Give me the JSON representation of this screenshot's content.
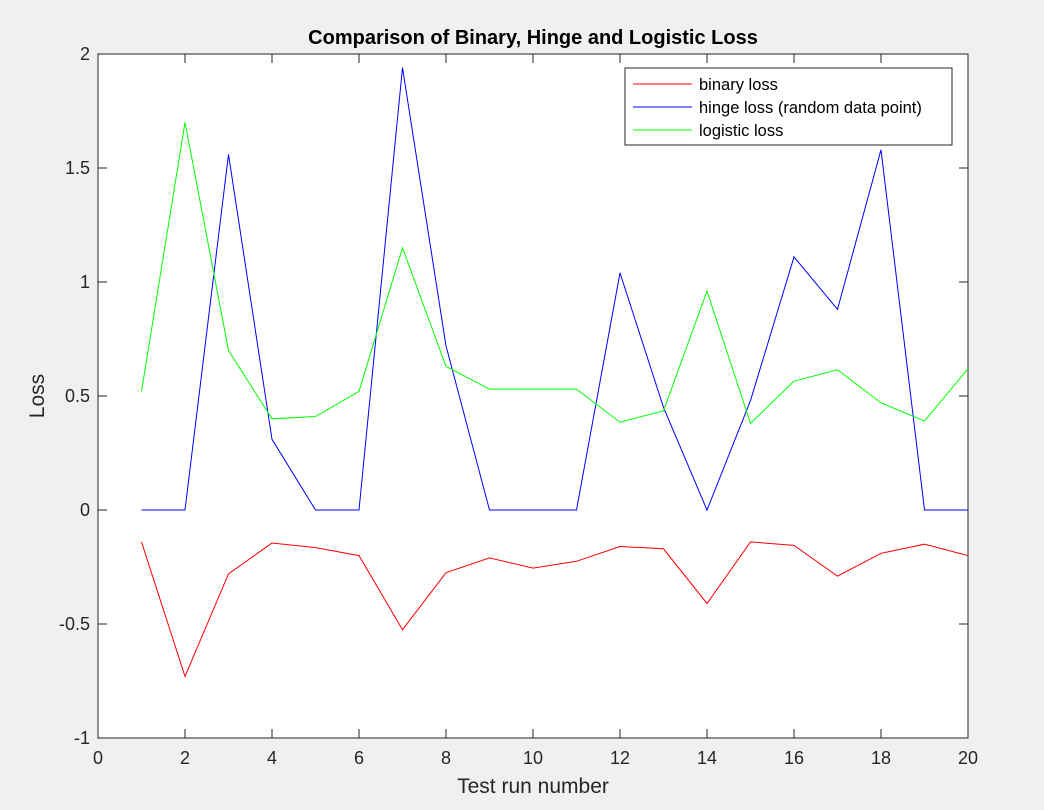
{
  "chart_data": {
    "type": "line",
    "title": "Comparison of Binary, Hinge and Logistic Loss",
    "xlabel": "Test run number",
    "ylabel": "Loss",
    "xlim": [
      0,
      20
    ],
    "ylim": [
      -1,
      2
    ],
    "xticks": [
      0,
      2,
      4,
      6,
      8,
      10,
      12,
      14,
      16,
      18,
      20
    ],
    "yticks": [
      -1,
      -0.5,
      0,
      0.5,
      1,
      1.5,
      2
    ],
    "xtick_labels": [
      "0",
      "2",
      "4",
      "6",
      "8",
      "10",
      "12",
      "14",
      "16",
      "18",
      "20"
    ],
    "ytick_labels": [
      "-1",
      "-0.5",
      "0",
      "0.5",
      "1",
      "1.5",
      "2"
    ],
    "grid": false,
    "legend_position": "top-right",
    "x": [
      1,
      2,
      3,
      4,
      5,
      6,
      7,
      8,
      9,
      10,
      11,
      12,
      13,
      14,
      15,
      16,
      17,
      18,
      19,
      20
    ],
    "series": [
      {
        "name": "binary loss",
        "color": "#ff0000",
        "values": [
          -0.14,
          -0.73,
          -0.28,
          -0.145,
          -0.165,
          -0.2,
          -0.525,
          -0.275,
          -0.21,
          -0.255,
          -0.225,
          -0.16,
          -0.17,
          -0.41,
          -0.14,
          -0.155,
          -0.29,
          -0.19,
          -0.15,
          -0.2
        ]
      },
      {
        "name": "hinge loss (random data point)",
        "color": "#0000ff",
        "values": [
          0,
          0,
          1.56,
          0.31,
          0,
          0,
          1.94,
          0.72,
          0,
          0,
          0,
          1.04,
          0.45,
          0,
          0.48,
          1.11,
          0.88,
          1.58,
          0,
          0
        ]
      },
      {
        "name": "logistic loss",
        "color": "#00ff00",
        "values": [
          0.52,
          1.7,
          0.7,
          0.4,
          0.41,
          0.52,
          1.15,
          0.63,
          0.53,
          0.53,
          0.53,
          0.385,
          0.435,
          0.96,
          0.38,
          0.565,
          0.615,
          0.47,
          0.39,
          0.62
        ]
      }
    ]
  }
}
